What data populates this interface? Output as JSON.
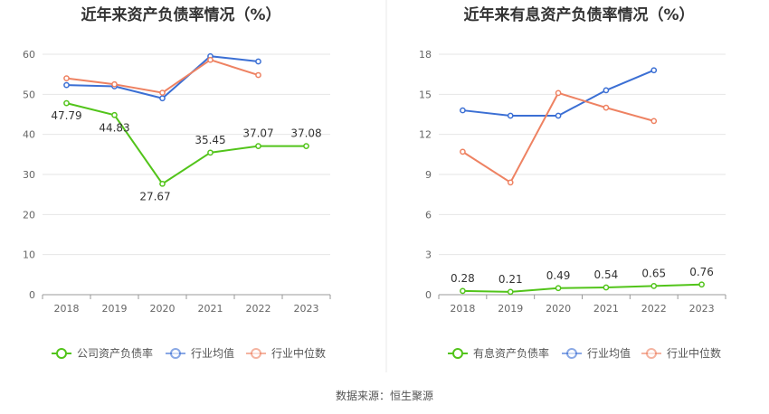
{
  "footer": {
    "source": "数据来源：恒生聚源"
  },
  "colors": {
    "company": "#52c41a",
    "average": "#3b6fd4",
    "median": "#ee8262",
    "axis": "#999999",
    "grid": "#e6e6e6",
    "divider": "#e8e8e8",
    "tick_text": "#666666",
    "label_text": "#333333"
  },
  "chart_data": [
    {
      "type": "line",
      "title": "近年来资产负债率情况（%）",
      "categories": [
        "2018",
        "2019",
        "2020",
        "2021",
        "2022",
        "2023"
      ],
      "ylim": [
        0,
        60
      ],
      "yticks": [
        0,
        10,
        20,
        30,
        40,
        50,
        60
      ],
      "grid": true,
      "legend_position": "bottom",
      "series": [
        {
          "name": "公司资产负债率",
          "role": "company",
          "values": [
            47.79,
            44.83,
            27.67,
            35.45,
            37.07,
            37.08
          ],
          "labels": [
            "47.79",
            "44.83",
            "27.67",
            "35.45",
            "37.07",
            "37.08"
          ]
        },
        {
          "name": "行业均值",
          "role": "average",
          "values": [
            52.3,
            52.0,
            49.0,
            59.5,
            58.2,
            null
          ]
        },
        {
          "name": "行业中位数",
          "role": "median",
          "values": [
            54.0,
            52.5,
            50.4,
            58.6,
            54.8,
            null
          ]
        }
      ]
    },
    {
      "type": "line",
      "title": "近年来有息资产负债率情况（%）",
      "categories": [
        "2018",
        "2019",
        "2020",
        "2021",
        "2022",
        "2023"
      ],
      "ylim": [
        0,
        18
      ],
      "yticks": [
        0,
        3,
        6,
        9,
        12,
        15,
        18
      ],
      "grid": true,
      "legend_position": "bottom",
      "series": [
        {
          "name": "有息资产负债率",
          "role": "company",
          "values": [
            0.28,
            0.21,
            0.49,
            0.54,
            0.65,
            0.76
          ],
          "labels": [
            "0.28",
            "0.21",
            "0.49",
            "0.54",
            "0.65",
            "0.76"
          ]
        },
        {
          "name": "行业均值",
          "role": "average",
          "values": [
            13.8,
            13.4,
            13.4,
            15.3,
            16.8,
            null
          ]
        },
        {
          "name": "行业中位数",
          "role": "median",
          "values": [
            10.7,
            8.4,
            15.1,
            14.0,
            13.0,
            null
          ]
        }
      ]
    }
  ]
}
